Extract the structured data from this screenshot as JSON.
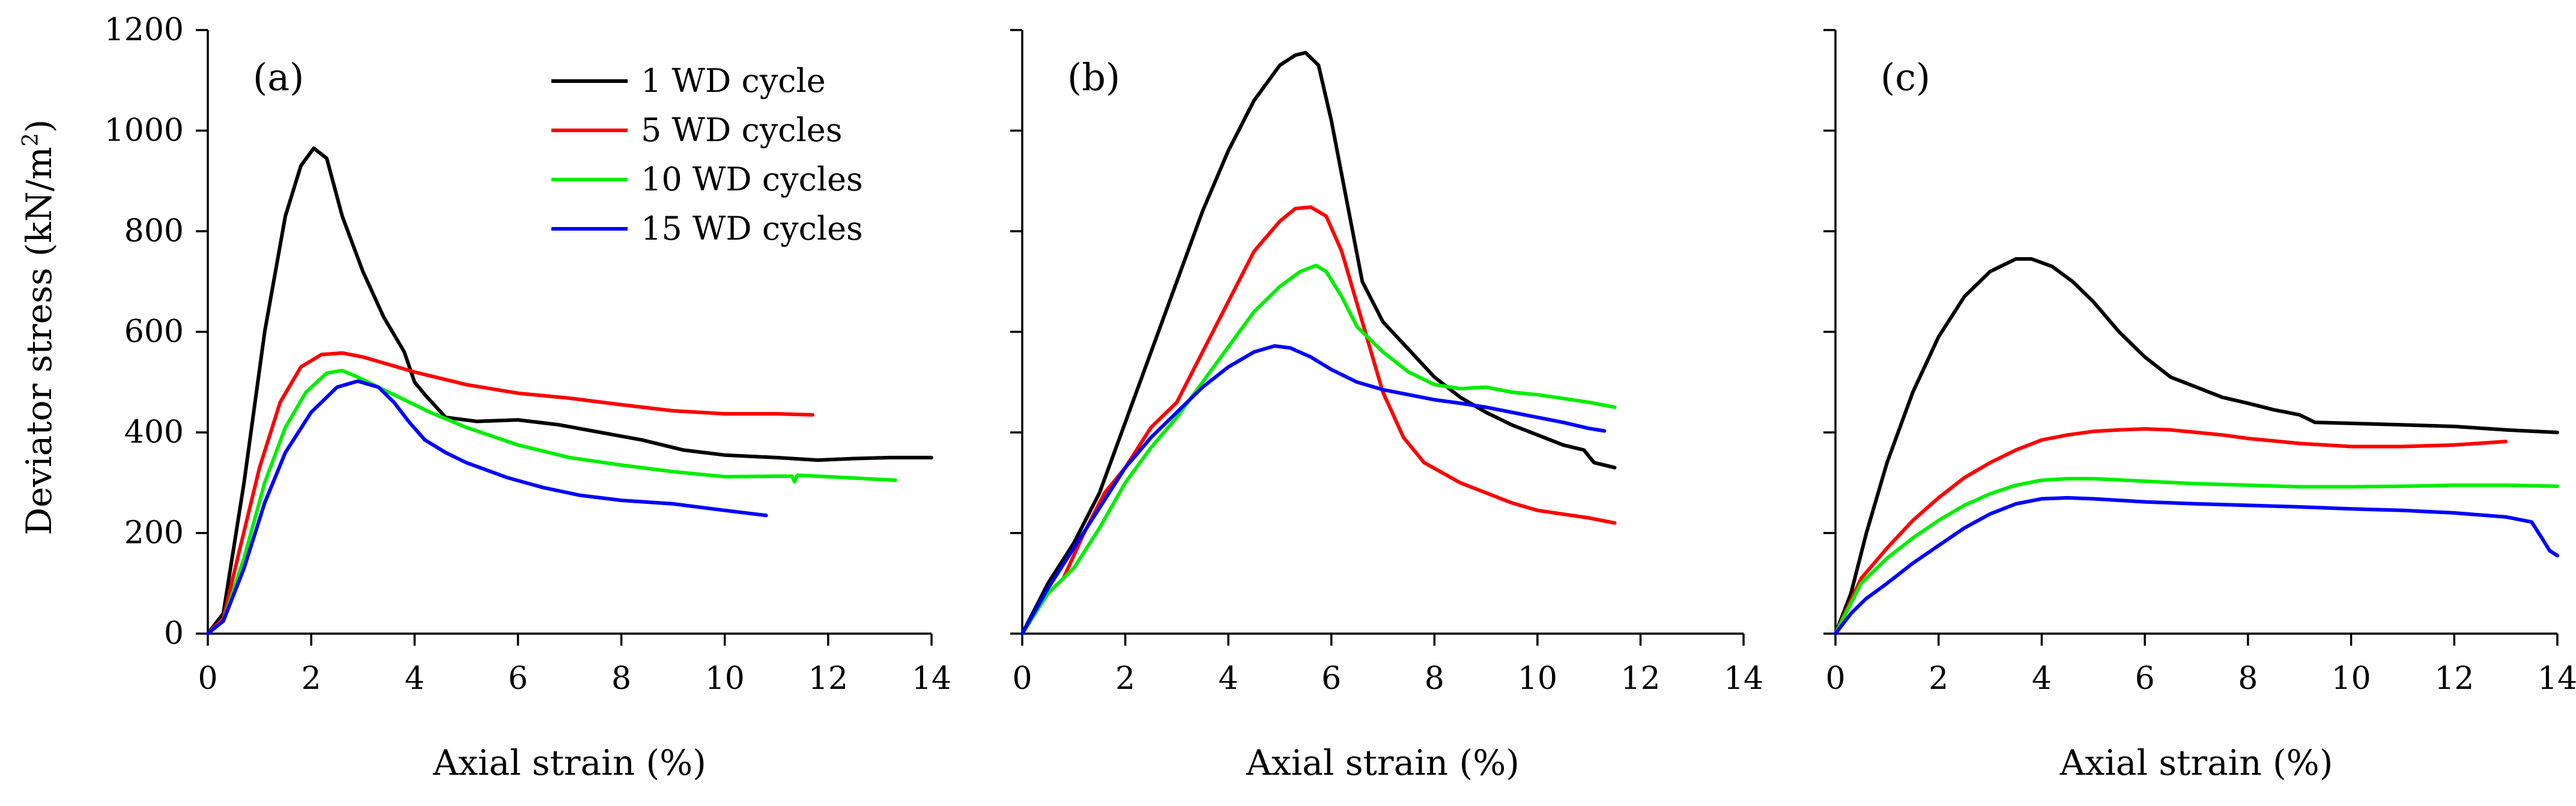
{
  "figure": {
    "ylabel": "Deviator stress (kN/m",
    "ylabel_sup": "2",
    "ylabel_close": ")",
    "xlabel": "Axial strain (%)"
  },
  "legend": {
    "position": "top-right of panel (a)",
    "entries": [
      {
        "label": "1 WD cycle",
        "color": "#000000"
      },
      {
        "label": "5 WD cycles",
        "color": "#ff0000"
      },
      {
        "label": "10 WD cycles",
        "color": "#00ee00"
      },
      {
        "label": "15 WD cycles",
        "color": "#0000ff"
      }
    ]
  },
  "chart_data": [
    {
      "panel": "(a)",
      "type": "line",
      "xlabel": "Axial strain (%)",
      "ylabel": "Deviator stress (kN/m²)",
      "xlim": [
        0,
        14
      ],
      "ylim": [
        0,
        1200
      ],
      "xticks": [
        0,
        2,
        4,
        6,
        8,
        10,
        12,
        14
      ],
      "yticks": [
        0,
        200,
        400,
        600,
        800,
        1000,
        1200
      ],
      "series": [
        {
          "name": "1 WD cycle",
          "color": "#000000",
          "x": [
            0,
            0.3,
            0.7,
            1.1,
            1.5,
            1.8,
            2.05,
            2.3,
            2.6,
            3.0,
            3.4,
            3.8,
            4.0,
            4.2,
            4.6,
            5.2,
            6.0,
            6.8,
            7.6,
            8.4,
            9.2,
            10.0,
            11.0,
            11.8,
            12.5,
            13.2,
            14.0
          ],
          "y": [
            0,
            40,
            300,
            600,
            830,
            930,
            965,
            945,
            830,
            720,
            630,
            560,
            500,
            475,
            430,
            422,
            425,
            415,
            400,
            385,
            365,
            355,
            350,
            345,
            348,
            350,
            350
          ]
        },
        {
          "name": "5 WD cycles",
          "color": "#ff0000",
          "x": [
            0,
            0.3,
            0.6,
            1.0,
            1.4,
            1.8,
            2.2,
            2.6,
            3.0,
            3.5,
            4.0,
            5.0,
            6.0,
            7.0,
            8.0,
            9.0,
            10.0,
            11.0,
            11.7
          ],
          "y": [
            0,
            30,
            160,
            330,
            460,
            530,
            555,
            558,
            550,
            535,
            520,
            495,
            478,
            468,
            455,
            443,
            437,
            437,
            435
          ]
        },
        {
          "name": "10 WD cycles",
          "color": "#00ee00",
          "x": [
            0,
            0.3,
            0.7,
            1.1,
            1.5,
            1.9,
            2.3,
            2.6,
            2.9,
            3.3,
            3.8,
            4.3,
            5.0,
            6.0,
            7.0,
            8.0,
            9.0,
            10.0,
            11.0,
            11.3,
            11.35,
            11.4,
            12.0,
            13.3
          ],
          "y": [
            0,
            25,
            150,
            300,
            410,
            480,
            518,
            523,
            510,
            490,
            465,
            440,
            410,
            375,
            350,
            335,
            322,
            312,
            313,
            313,
            302,
            315,
            312,
            305
          ]
        },
        {
          "name": "15 WD cycles",
          "color": "#0000ff",
          "x": [
            0,
            0.3,
            0.7,
            1.1,
            1.5,
            2.0,
            2.5,
            2.9,
            3.3,
            3.6,
            3.9,
            4.2,
            4.6,
            5.0,
            5.8,
            6.5,
            7.2,
            8.0,
            9.0,
            10.0,
            10.8
          ],
          "y": [
            0,
            25,
            130,
            260,
            360,
            440,
            490,
            502,
            490,
            460,
            420,
            385,
            360,
            340,
            310,
            290,
            275,
            265,
            258,
            245,
            235
          ]
        }
      ]
    },
    {
      "panel": "(b)",
      "type": "line",
      "xlabel": "Axial strain (%)",
      "ylabel": "",
      "xlim": [
        0,
        14
      ],
      "ylim": [
        0,
        1200
      ],
      "xticks": [
        0,
        2,
        4,
        6,
        8,
        10,
        12,
        14
      ],
      "yticks": [
        0,
        200,
        400,
        600,
        800,
        1000,
        1200
      ],
      "series": [
        {
          "name": "1 WD cycle",
          "color": "#000000",
          "x": [
            0,
            0.5,
            1.0,
            1.5,
            2.0,
            2.5,
            3.0,
            3.5,
            4.0,
            4.5,
            5.0,
            5.3,
            5.5,
            5.75,
            6.0,
            6.3,
            6.6,
            7.0,
            7.5,
            8.0,
            8.5,
            9.0,
            9.5,
            10.0,
            10.5,
            10.9,
            11.1,
            11.5
          ],
          "y": [
            0,
            100,
            180,
            280,
            420,
            560,
            700,
            840,
            960,
            1060,
            1130,
            1150,
            1155,
            1130,
            1020,
            860,
            700,
            620,
            565,
            510,
            470,
            440,
            415,
            395,
            375,
            365,
            340,
            330
          ]
        },
        {
          "name": "5 WD cycles",
          "color": "#ff0000",
          "x": [
            0,
            0.5,
            0.8,
            1.2,
            1.6,
            2.0,
            2.5,
            3.0,
            3.5,
            4.0,
            4.5,
            5.0,
            5.3,
            5.6,
            5.9,
            6.2,
            6.6,
            7.0,
            7.4,
            7.8,
            8.5,
            9.5,
            10.0,
            11.0,
            11.5
          ],
          "y": [
            0,
            80,
            110,
            200,
            280,
            330,
            410,
            460,
            560,
            660,
            760,
            820,
            845,
            848,
            830,
            760,
            620,
            480,
            390,
            340,
            300,
            260,
            245,
            230,
            220
          ]
        },
        {
          "name": "10 WD cycles",
          "color": "#00ee00",
          "x": [
            0,
            0.5,
            1.0,
            1.5,
            2.0,
            2.5,
            3.0,
            3.5,
            4.0,
            4.5,
            5.0,
            5.4,
            5.7,
            5.9,
            6.2,
            6.5,
            7.0,
            7.5,
            8.0,
            8.5,
            9.0,
            9.5,
            10.0,
            11.0,
            11.5
          ],
          "y": [
            0,
            80,
            130,
            210,
            300,
            370,
            430,
            500,
            570,
            640,
            690,
            720,
            732,
            720,
            670,
            610,
            560,
            520,
            495,
            487,
            490,
            480,
            475,
            460,
            450
          ]
        },
        {
          "name": "15 WD cycles",
          "color": "#0000ff",
          "x": [
            0,
            0.5,
            1.0,
            1.5,
            2.0,
            2.5,
            3.0,
            3.5,
            4.0,
            4.5,
            4.9,
            5.2,
            5.6,
            6.0,
            6.5,
            7.0,
            7.5,
            8.0,
            8.5,
            9.0,
            9.5,
            10.0,
            10.5,
            11.0,
            11.3
          ],
          "y": [
            0,
            90,
            170,
            250,
            330,
            390,
            440,
            490,
            530,
            560,
            572,
            568,
            550,
            525,
            500,
            485,
            475,
            465,
            458,
            450,
            440,
            430,
            420,
            408,
            403
          ]
        }
      ]
    },
    {
      "panel": "(c)",
      "type": "line",
      "xlabel": "Axial strain (%)",
      "ylabel": "",
      "xlim": [
        0,
        14
      ],
      "ylim": [
        0,
        1200
      ],
      "xticks": [
        0,
        2,
        4,
        6,
        8,
        10,
        12,
        14
      ],
      "yticks": [
        0,
        200,
        400,
        600,
        800,
        1000,
        1200
      ],
      "series": [
        {
          "name": "1 WD cycle",
          "color": "#000000",
          "x": [
            0,
            0.3,
            0.6,
            1.0,
            1.5,
            2.0,
            2.5,
            3.0,
            3.5,
            3.8,
            4.2,
            4.6,
            5.0,
            5.5,
            6.0,
            6.5,
            7.0,
            7.5,
            8.0,
            8.5,
            9.0,
            9.3,
            10.0,
            11.0,
            12.0,
            13.0,
            14.0
          ],
          "y": [
            0,
            80,
            200,
            340,
            480,
            590,
            670,
            720,
            745,
            745,
            730,
            700,
            660,
            600,
            550,
            510,
            490,
            470,
            458,
            445,
            435,
            420,
            418,
            415,
            412,
            405,
            400
          ]
        },
        {
          "name": "5 WD cycles",
          "color": "#ff0000",
          "x": [
            0,
            0.5,
            1.0,
            1.5,
            2.0,
            2.5,
            3.0,
            3.5,
            4.0,
            4.5,
            5.0,
            5.5,
            6.0,
            6.5,
            7.0,
            7.5,
            8.0,
            9.0,
            10.0,
            11.0,
            12.0,
            13.0
          ],
          "y": [
            0,
            110,
            170,
            225,
            270,
            310,
            340,
            365,
            385,
            395,
            402,
            405,
            407,
            405,
            400,
            395,
            388,
            378,
            372,
            372,
            375,
            382
          ]
        },
        {
          "name": "10 WD cycles",
          "color": "#00ee00",
          "x": [
            0,
            0.5,
            1.0,
            1.5,
            2.0,
            2.5,
            3.0,
            3.5,
            4.0,
            4.5,
            5.0,
            6.0,
            7.0,
            8.0,
            9.0,
            10.0,
            11.0,
            12.0,
            13.0,
            14.0
          ],
          "y": [
            0,
            100,
            150,
            190,
            225,
            255,
            278,
            295,
            305,
            308,
            308,
            303,
            298,
            295,
            292,
            292,
            293,
            295,
            295,
            293
          ]
        },
        {
          "name": "15 WD cycles",
          "color": "#0000ff",
          "x": [
            0,
            0.3,
            0.6,
            1.0,
            1.5,
            2.0,
            2.5,
            3.0,
            3.5,
            4.0,
            4.5,
            5.0,
            6.0,
            7.0,
            8.0,
            9.0,
            10.0,
            11.0,
            12.0,
            13.0,
            13.5,
            13.7,
            13.85,
            14.0
          ],
          "y": [
            0,
            40,
            70,
            100,
            140,
            175,
            210,
            238,
            258,
            268,
            270,
            268,
            262,
            258,
            255,
            252,
            248,
            245,
            240,
            232,
            222,
            190,
            165,
            155
          ]
        }
      ]
    }
  ]
}
